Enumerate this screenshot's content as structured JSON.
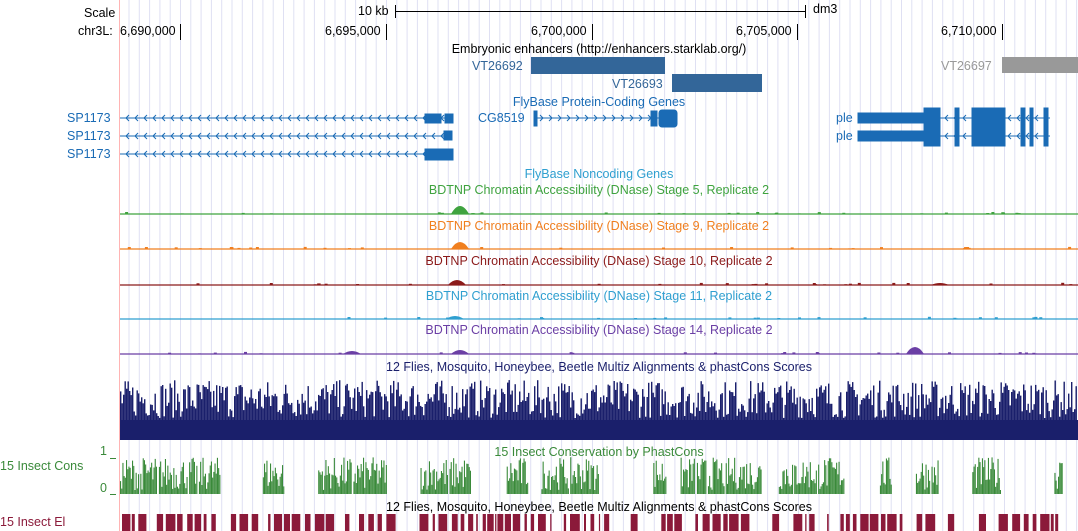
{
  "ruler": {
    "scale_label": "Scale",
    "scale_bar_label": "10 kb",
    "assembly": "dm3",
    "chrom_label": "chr3L:",
    "ticks": [
      "6,690,000",
      "6,695,000",
      "6,700,000",
      "6,705,000",
      "6,710,000"
    ]
  },
  "enhancers": {
    "title": "Embryonic enhancers (http://enhancers.starklab.org/)",
    "items": [
      {
        "name": "VT26692",
        "color": "#336699"
      },
      {
        "name": "VT26693",
        "color": "#336699"
      },
      {
        "name": "VT26697",
        "color": "#999999"
      }
    ]
  },
  "protein_genes": {
    "title": "FlyBase Protein-Coding Genes",
    "left_labels": [
      "SP1173",
      "SP1173",
      "SP1173"
    ],
    "center_label": "CG8519",
    "right_labels": [
      "ple",
      "ple"
    ],
    "color": "#1a6bb5"
  },
  "noncoding": {
    "title": "FlyBase Noncoding Genes"
  },
  "dnase": [
    {
      "title": "BDTNP Chromatin Accessibility (DNase) Stage 5, Replicate 2",
      "color": "#3fa33f"
    },
    {
      "title": "BDTNP Chromatin Accessibility (DNase) Stage 9, Replicate 2",
      "color": "#f07f1f"
    },
    {
      "title": "BDTNP Chromatin Accessibility (DNase) Stage 10, Replicate 2",
      "color": "#8b1a1a"
    },
    {
      "title": "BDTNP Chromatin Accessibility (DNase) Stage 11, Replicate 2",
      "color": "#2f9fd0"
    },
    {
      "title": "BDTNP Chromatin Accessibility (DNase) Stage 14, Replicate 2",
      "color": "#6b3fa5"
    }
  ],
  "multiz": {
    "title": "12 Flies, Mosquito, Honeybee, Beetle Multiz Alignments & phastCons Scores",
    "color": "#1a1f6b"
  },
  "phastcons": {
    "title": "15 Insect Conservation by PhastCons",
    "side_label": "15 Insect Cons",
    "axis_max": "1",
    "axis_min": "0",
    "color": "#3a8a3a"
  },
  "multiz2": {
    "title": "12 Flies, Mosquito, Honeybee, Beetle Multiz Alignments & phastCons Scores"
  },
  "elements": {
    "side_label": "15 Insect El",
    "color": "#8b1a3a"
  }
}
